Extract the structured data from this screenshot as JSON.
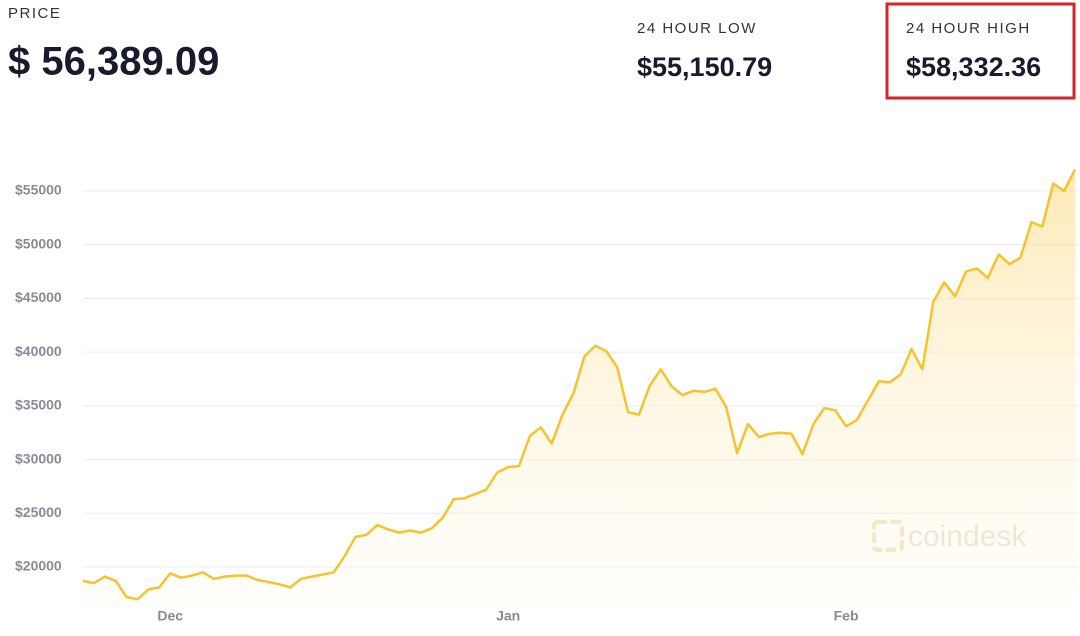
{
  "header": {
    "price_label": "PRICE",
    "price": "$ 56,389.09",
    "low_label": "24 HOUR LOW",
    "low": "$55,150.79",
    "high_label": "24 HOUR HIGH",
    "high": "$58,332.36"
  },
  "chart_data": {
    "type": "line",
    "watermark": "coindesk",
    "color": "#f5c330",
    "grid": true,
    "categories": [
      null,
      null,
      null,
      null,
      null,
      null,
      null,
      null,
      "Dec",
      null,
      null,
      null,
      null,
      null,
      null,
      null,
      null,
      null,
      null,
      null,
      null,
      null,
      null,
      null,
      null,
      null,
      null,
      null,
      null,
      null,
      null,
      null,
      null,
      null,
      null,
      null,
      null,
      null,
      null,
      "Jan",
      null,
      null,
      null,
      null,
      null,
      null,
      null,
      null,
      null,
      null,
      null,
      null,
      null,
      null,
      null,
      null,
      null,
      null,
      null,
      null,
      null,
      null,
      null,
      null,
      null,
      null,
      null,
      null,
      null,
      null,
      "Feb",
      null,
      null,
      null,
      null,
      null,
      null,
      null,
      null,
      null,
      null,
      null,
      null,
      null,
      null,
      null,
      null,
      null,
      null,
      null,
      null,
      null
    ],
    "values": [
      18700,
      18500,
      19100,
      18700,
      17200,
      17000,
      17900,
      18100,
      19400,
      19000,
      19200,
      19500,
      18900,
      19100,
      19200,
      19200,
      18800,
      18600,
      18400,
      18100,
      18900,
      19100,
      19300,
      19500,
      21000,
      22800,
      23000,
      23900,
      23500,
      23200,
      23400,
      23200,
      23600,
      24600,
      26300,
      26400,
      26800,
      27200,
      28800,
      29300,
      29400,
      32200,
      33000,
      31500,
      34200,
      36200,
      39600,
      40600,
      40100,
      38600,
      34400,
      34200,
      36900,
      38400,
      36800,
      36000,
      36400,
      36300,
      36600,
      34900,
      30600,
      33300,
      32100,
      32400,
      32500,
      32400,
      30500,
      33300,
      34800,
      34600,
      33100,
      33700,
      35500,
      37300,
      37200,
      37900,
      40300,
      38400,
      44700,
      46500,
      45200,
      47500,
      47800,
      46900,
      49100,
      48200,
      48800,
      52100,
      51700,
      55700,
      55000,
      57000
    ],
    "ylim": [
      16600,
      57600
    ],
    "yticks": [
      {
        "value": 20000,
        "label": "$20000"
      },
      {
        "value": 25000,
        "label": "$25000"
      },
      {
        "value": 30000,
        "label": "$30000"
      },
      {
        "value": 35000,
        "label": "$35000"
      },
      {
        "value": 40000,
        "label": "$40000"
      },
      {
        "value": 45000,
        "label": "$45000"
      },
      {
        "value": 50000,
        "label": "$50000"
      },
      {
        "value": 55000,
        "label": "$55000"
      }
    ]
  }
}
